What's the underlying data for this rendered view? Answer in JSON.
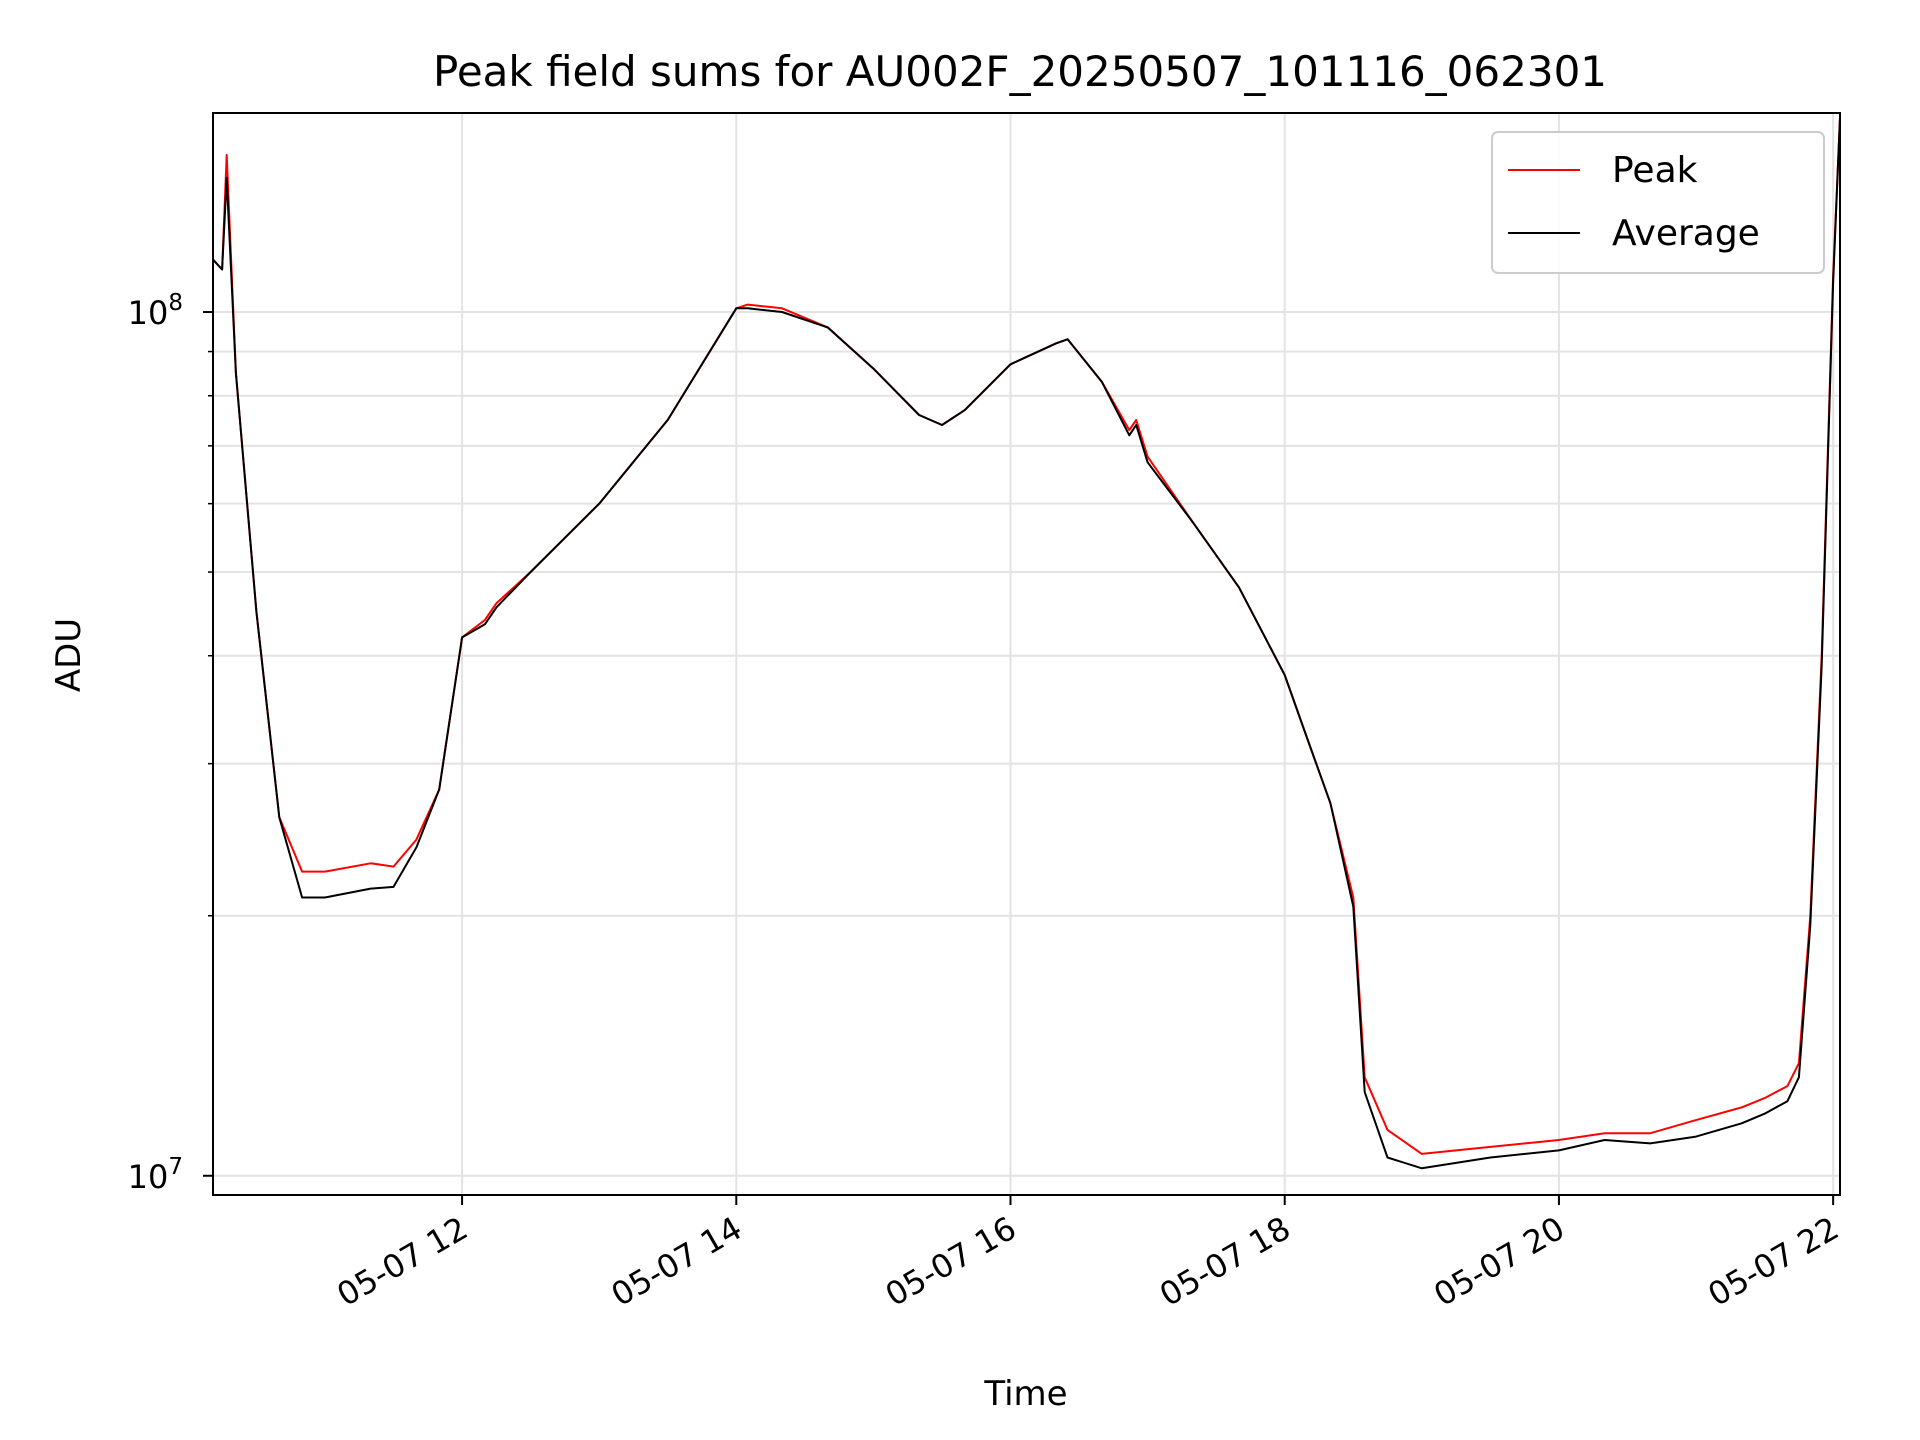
{
  "chart_data": {
    "type": "line",
    "title": "Peak field sums for AU002F_20250507_101116_062301",
    "xlabel": "Time",
    "ylabel": "ADU",
    "yscale": "log",
    "ylim": [
      9500000,
      170000000
    ],
    "xlim": [
      "2025-05-07 10:11",
      "2025-05-07 22:03"
    ],
    "grid": true,
    "legend_position": "top-right",
    "x_ticks": [
      "05-07 12",
      "05-07 14",
      "05-07 16",
      "05-07 18",
      "05-07 20",
      "05-07 22"
    ],
    "y_ticks": [
      {
        "base": "10",
        "exp": "7",
        "value": 10000000
      },
      {
        "base": "10",
        "exp": "8",
        "value": 100000000
      }
    ],
    "x": [
      "2025-05-07 10:11",
      "2025-05-07 10:15",
      "2025-05-07 10:17",
      "2025-05-07 10:21",
      "2025-05-07 10:30",
      "2025-05-07 10:40",
      "2025-05-07 10:50",
      "2025-05-07 11:00",
      "2025-05-07 11:20",
      "2025-05-07 11:30",
      "2025-05-07 11:40",
      "2025-05-07 11:50",
      "2025-05-07 12:00",
      "2025-05-07 12:10",
      "2025-05-07 12:15",
      "2025-05-07 12:30",
      "2025-05-07 13:00",
      "2025-05-07 13:30",
      "2025-05-07 14:00",
      "2025-05-07 14:05",
      "2025-05-07 14:20",
      "2025-05-07 14:40",
      "2025-05-07 15:00",
      "2025-05-07 15:20",
      "2025-05-07 15:30",
      "2025-05-07 15:40",
      "2025-05-07 16:00",
      "2025-05-07 16:20",
      "2025-05-07 16:25",
      "2025-05-07 16:40",
      "2025-05-07 16:52",
      "2025-05-07 16:55",
      "2025-05-07 17:00",
      "2025-05-07 17:20",
      "2025-05-07 17:40",
      "2025-05-07 18:00",
      "2025-05-07 18:10",
      "2025-05-07 18:20",
      "2025-05-07 18:30",
      "2025-05-07 18:35",
      "2025-05-07 18:45",
      "2025-05-07 19:00",
      "2025-05-07 19:30",
      "2025-05-07 20:00",
      "2025-05-07 20:20",
      "2025-05-07 20:40",
      "2025-05-07 21:00",
      "2025-05-07 21:20",
      "2025-05-07 21:30",
      "2025-05-07 21:40",
      "2025-05-07 21:45",
      "2025-05-07 21:50",
      "2025-05-07 21:55",
      "2025-05-07 22:00",
      "2025-05-07 22:03"
    ],
    "series": [
      {
        "name": "Peak",
        "color": "#ff0000",
        "values": [
          115000000,
          112000000,
          152000000,
          85000000,
          45000000,
          26000000,
          22500000,
          22500000,
          23000000,
          22800000,
          24500000,
          28000000,
          42000000,
          44000000,
          46000000,
          50000000,
          60000000,
          75000000,
          101000000,
          102000000,
          101000000,
          96000000,
          86000000,
          76000000,
          74000000,
          77000000,
          87000000,
          92000000,
          93000000,
          83000000,
          73000000,
          75000000,
          68000000,
          57000000,
          48000000,
          38000000,
          32000000,
          27000000,
          21000000,
          13000000,
          11300000,
          10600000,
          10800000,
          11000000,
          11200000,
          11200000,
          11600000,
          12000000,
          12300000,
          12700000,
          13500000,
          20000000,
          40000000,
          110000000,
          168000000
        ]
      },
      {
        "name": "Average",
        "color": "#000000",
        "values": [
          115000000,
          112000000,
          143000000,
          85000000,
          45000000,
          26000000,
          21000000,
          21000000,
          21500000,
          21600000,
          24000000,
          28000000,
          42000000,
          43500000,
          45500000,
          50000000,
          60000000,
          75000000,
          101000000,
          101000000,
          100000000,
          96000000,
          86000000,
          76000000,
          74000000,
          77000000,
          87000000,
          92000000,
          93000000,
          83000000,
          72000000,
          74000000,
          67000000,
          57000000,
          48000000,
          38000000,
          32000000,
          27000000,
          20500000,
          12500000,
          10500000,
          10200000,
          10500000,
          10700000,
          11000000,
          10900000,
          11100000,
          11500000,
          11800000,
          12200000,
          13000000,
          19500000,
          39000000,
          108000000,
          168000000
        ]
      }
    ]
  }
}
